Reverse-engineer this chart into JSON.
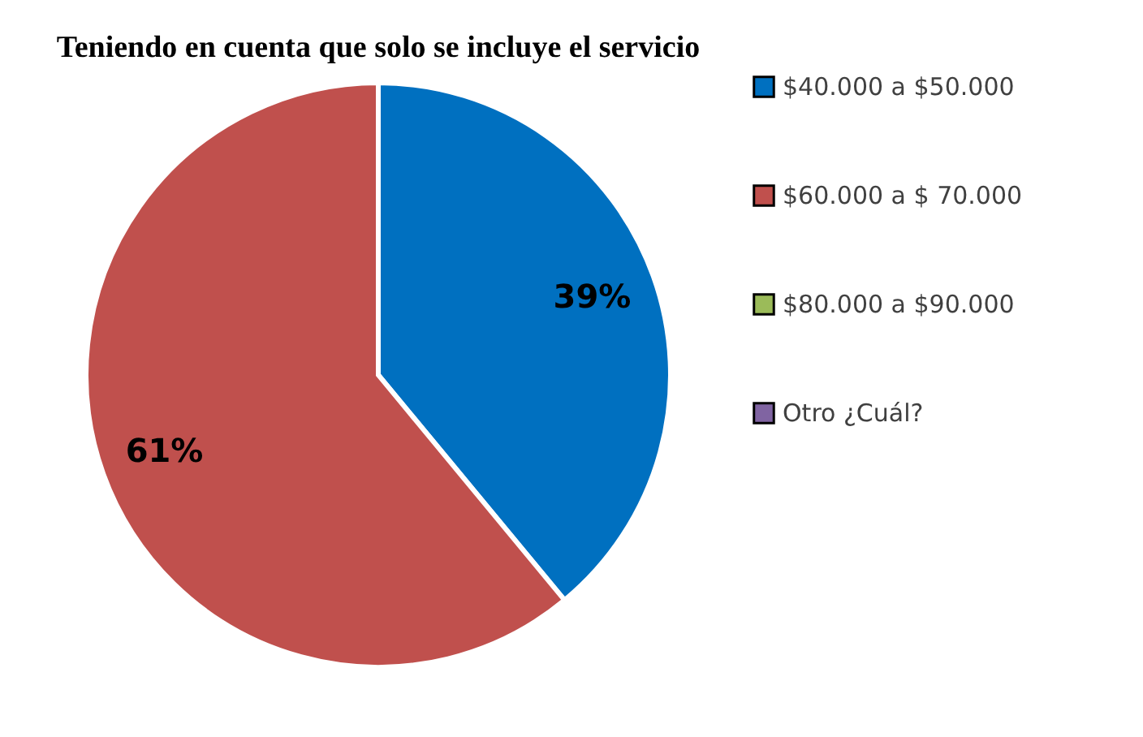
{
  "chart_data": {
    "type": "pie",
    "title": "Teniendo en cuenta que solo se incluye el servicio",
    "categories": [
      "$40.000 a $50.000",
      "$60.000 a $ 70.000",
      "$80.000 a $90.000",
      "Otro  ¿Cuál?"
    ],
    "values": [
      39,
      61,
      0,
      0
    ],
    "colors": [
      "#0070c0",
      "#c0504d",
      "#9bbb59",
      "#8064a2"
    ],
    "value_labels": [
      "39%",
      "61%",
      null,
      null
    ],
    "legend": "right"
  }
}
